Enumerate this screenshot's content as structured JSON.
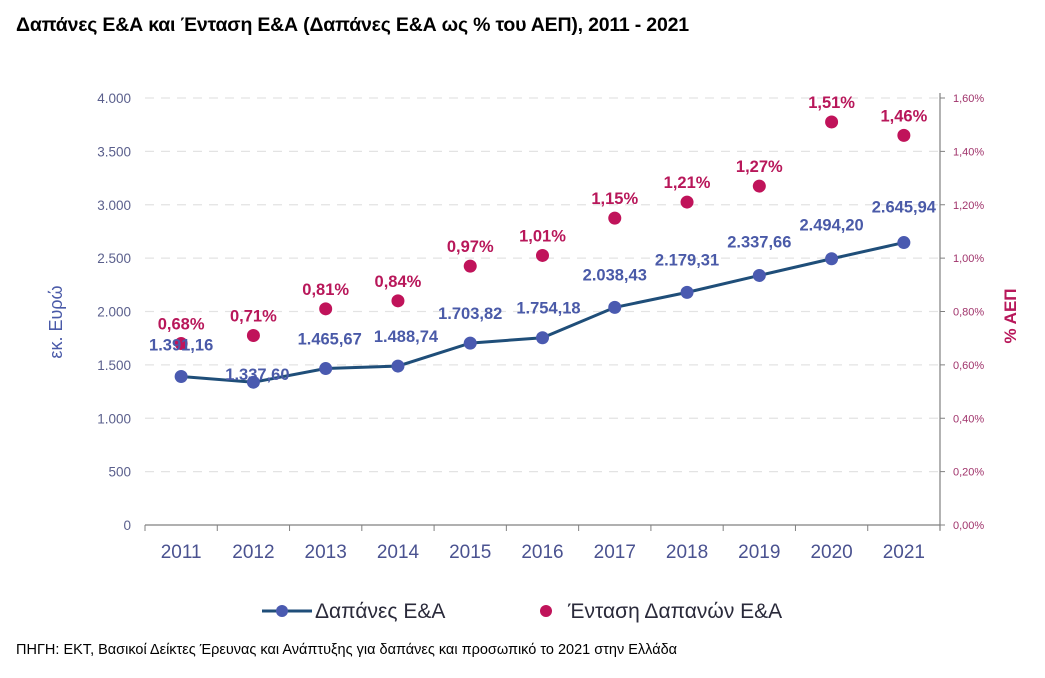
{
  "title": "Δαπάνες Ε&Α και Ένταση Ε&Α (Δαπάνες Ε&Α ως % του ΑΕΠ), 2011 - 2021",
  "source": "ΠΗΓΗ: ΕΚΤ, Βασικοί Δείκτες Έρευνας και Ανάπτυξης για δαπάνες και προσωπικό το 2021 στην Ελλάδα",
  "colors": {
    "line": "#1f4e79",
    "line_marker": "#4a5ab0",
    "dots": "#c0135a",
    "value_label": "#4a5aa8",
    "pct_label": "#b8175a",
    "grid": "#e3e3e3",
    "axis": "#808080"
  },
  "chart_data": {
    "type": "line",
    "title": "Δαπάνες Ε&Α και Ένταση Ε&Α (Δαπάνες Ε&Α ως % του ΑΕΠ), 2011 - 2021",
    "categories": [
      "2011",
      "2012",
      "2013",
      "2014",
      "2015",
      "2016",
      "2017",
      "2018",
      "2019",
      "2020",
      "2021"
    ],
    "series": [
      {
        "name": "Δαπάνες Ε&Α",
        "type": "line",
        "axis": "left",
        "values": [
          1391.16,
          1337.6,
          1465.67,
          1488.74,
          1703.82,
          1754.18,
          2038.43,
          2179.31,
          2337.66,
          2494.2,
          2645.94
        ],
        "labels": [
          "1.391,16",
          "1.337,60",
          "1.465,67",
          "1.488,74",
          "1.703,82",
          "1.754,18",
          "2.038,43",
          "2.179,31",
          "2.337,66",
          "2.494,20",
          "2.645,94"
        ]
      },
      {
        "name": "Ένταση Δαπανών Ε&Α",
        "type": "scatter",
        "axis": "right",
        "values": [
          0.68,
          0.71,
          0.81,
          0.84,
          0.97,
          1.01,
          1.15,
          1.21,
          1.27,
          1.51,
          1.46
        ],
        "labels": [
          "0,68%",
          "0,71%",
          "0,81%",
          "0,84%",
          "0,97%",
          "1,01%",
          "1,15%",
          "1,21%",
          "1,27%",
          "1,51%",
          "1,46%"
        ]
      }
    ],
    "ylabel": "εκ. Ευρώ",
    "ylim": [
      0,
      4000
    ],
    "yticks": [
      "0",
      "500",
      "1.000",
      "1.500",
      "2.000",
      "2.500",
      "3.000",
      "3.500",
      "4.000"
    ],
    "y2label": "% ΑΕΠ",
    "y2lim": [
      0,
      1.6
    ],
    "y2ticks": [
      "0,00%",
      "0,20%",
      "0,40%",
      "0,60%",
      "0,80%",
      "1,00%",
      "1,20%",
      "1,40%",
      "1,60%"
    ],
    "grid": true,
    "legend": {
      "position": "bottom",
      "entries": [
        "Δαπάνες Ε&Α",
        "Ένταση Δαπανών Ε&Α"
      ]
    }
  }
}
